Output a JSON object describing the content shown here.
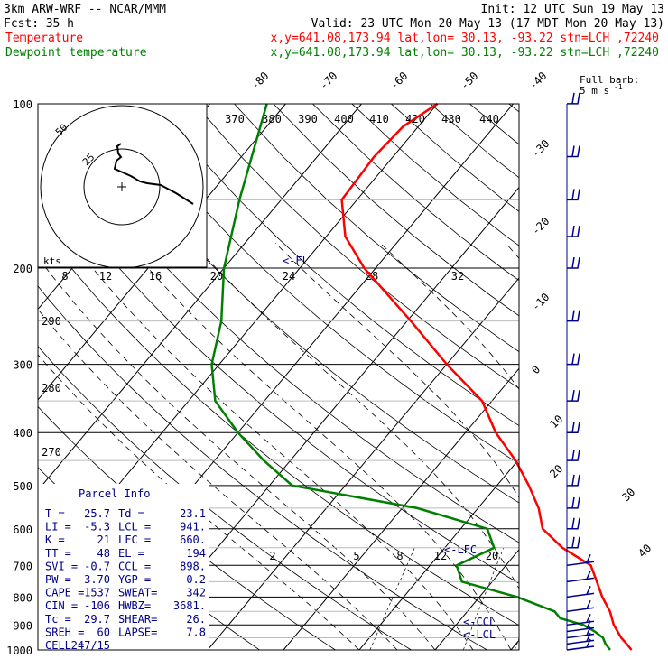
{
  "header": {
    "model": "3km ARW-WRF -- NCAR/MMM",
    "init": "Init: 12 UTC Sun 19 May 13",
    "fcst_label": "Fcst:",
    "fcst_value": "35 h",
    "valid": "Valid: 23 UTC Mon 20 May 13 (17 MDT Mon 20 May 13)",
    "temperature_legend": "Temperature",
    "dewpoint_legend": "Dewpoint temperature",
    "location_info": "x,y=641.08,173.94   lat,lon= 30.13, -93.22   stn=LCH ,72240"
  },
  "colors": {
    "temperature": "#ff0000",
    "dewpoint": "#008000",
    "parcel_box": "#00008b",
    "wind": "#00008b",
    "grid": "#000000"
  },
  "barb_key": {
    "line1": "Full barb:",
    "line2": "5 m s"
  },
  "parcel_info": {
    "title": "Parcel Info",
    "rows": [
      [
        "T  =",
        "25.7",
        "Td =",
        "23.1"
      ],
      [
        "LI =",
        "-5.3",
        "LCL =",
        "941."
      ],
      [
        "K  =",
        "21",
        "LFC =",
        "660."
      ],
      [
        "TT =",
        "48",
        "EL  =",
        "194"
      ],
      [
        "SVI =",
        "-0.7",
        "CCL =",
        "898."
      ],
      [
        "PW =",
        "3.70",
        "YGP =",
        "0.2"
      ],
      [
        "CAPE =",
        "1537",
        "SWEAT=",
        "342"
      ],
      [
        "CIN =",
        "-106",
        "HWBZ=",
        "3681."
      ],
      [
        "Tc  =",
        "29.7",
        "SHEAR=",
        "26."
      ],
      [
        "SREH =",
        "60",
        "LAPSE=",
        "7.8"
      ],
      [
        "CELL =",
        "247/15",
        "",
        ""
      ]
    ]
  },
  "hodograph": {
    "kts_label": "kts",
    "ring_labels": [
      "50",
      "25"
    ]
  },
  "chart_data": {
    "type": "skew-t",
    "pressure_levels": [
      1000,
      900,
      800,
      700,
      600,
      500,
      400,
      300,
      200,
      100
    ],
    "isotherm_labels": [
      -80,
      -70,
      -60,
      -50,
      -40,
      -30,
      -20,
      -10,
      0,
      10,
      20,
      30,
      40
    ],
    "theta_labels": [
      370,
      380,
      390,
      400,
      410,
      420,
      430,
      440
    ],
    "theta_e_labels": [
      290,
      280,
      270
    ],
    "speed_labels": [
      8,
      12,
      16,
      20,
      24,
      28,
      32
    ],
    "mixing_ratio_labels": [
      2,
      5,
      8,
      12,
      20
    ],
    "markers": {
      "el": "<-EL",
      "lfc": "<-LFC",
      "ccl": "<-CCL",
      "lcl": "<-LCL"
    },
    "temperature": [
      {
        "p": 1000,
        "t": 25.9
      },
      {
        "p": 975,
        "t": 24.6
      },
      {
        "p": 950,
        "t": 23.2
      },
      {
        "p": 900,
        "t": 20.8
      },
      {
        "p": 850,
        "t": 18.8
      },
      {
        "p": 800,
        "t": 16.2
      },
      {
        "p": 750,
        "t": 13.8
      },
      {
        "p": 700,
        "t": 11.2
      },
      {
        "p": 650,
        "t": 5.5
      },
      {
        "p": 600,
        "t": 0.8
      },
      {
        "p": 550,
        "t": -2.0
      },
      {
        "p": 500,
        "t": -5.8
      },
      {
        "p": 450,
        "t": -10.3
      },
      {
        "p": 400,
        "t": -16.0
      },
      {
        "p": 350,
        "t": -21.3
      },
      {
        "p": 300,
        "t": -30.0
      },
      {
        "p": 250,
        "t": -39.5
      },
      {
        "p": 200,
        "t": -51.5
      },
      {
        "p": 175,
        "t": -57.5
      },
      {
        "p": 150,
        "t": -62.0
      },
      {
        "p": 125,
        "t": -62.5
      },
      {
        "p": 110,
        "t": -62.0
      },
      {
        "p": 100,
        "t": -60.0
      }
    ],
    "dewpoint": [
      {
        "p": 1000,
        "t": 23.1
      },
      {
        "p": 975,
        "t": 21.8
      },
      {
        "p": 950,
        "t": 20.8
      },
      {
        "p": 925,
        "t": 19.0
      },
      {
        "p": 900,
        "t": 16.8
      },
      {
        "p": 875,
        "t": 13.0
      },
      {
        "p": 850,
        "t": 11.5
      },
      {
        "p": 800,
        "t": 5.0
      },
      {
        "p": 750,
        "t": -4.0
      },
      {
        "p": 700,
        "t": -6.5
      },
      {
        "p": 650,
        "t": -3.5
      },
      {
        "p": 600,
        "t": -6.5
      },
      {
        "p": 550,
        "t": -18.0
      },
      {
        "p": 500,
        "t": -37.0
      },
      {
        "p": 450,
        "t": -43.5
      },
      {
        "p": 400,
        "t": -50.0
      },
      {
        "p": 350,
        "t": -56.5
      },
      {
        "p": 300,
        "t": -61.0
      },
      {
        "p": 250,
        "t": -64.5
      },
      {
        "p": 200,
        "t": -70.0
      },
      {
        "p": 150,
        "t": -75.5
      },
      {
        "p": 100,
        "t": -82.5
      }
    ],
    "wind_levels": [
      1000,
      975,
      950,
      925,
      900,
      850,
      800,
      750,
      700,
      650,
      600,
      550,
      500,
      450,
      400,
      350,
      300,
      250,
      200,
      175,
      150,
      125,
      100
    ]
  }
}
